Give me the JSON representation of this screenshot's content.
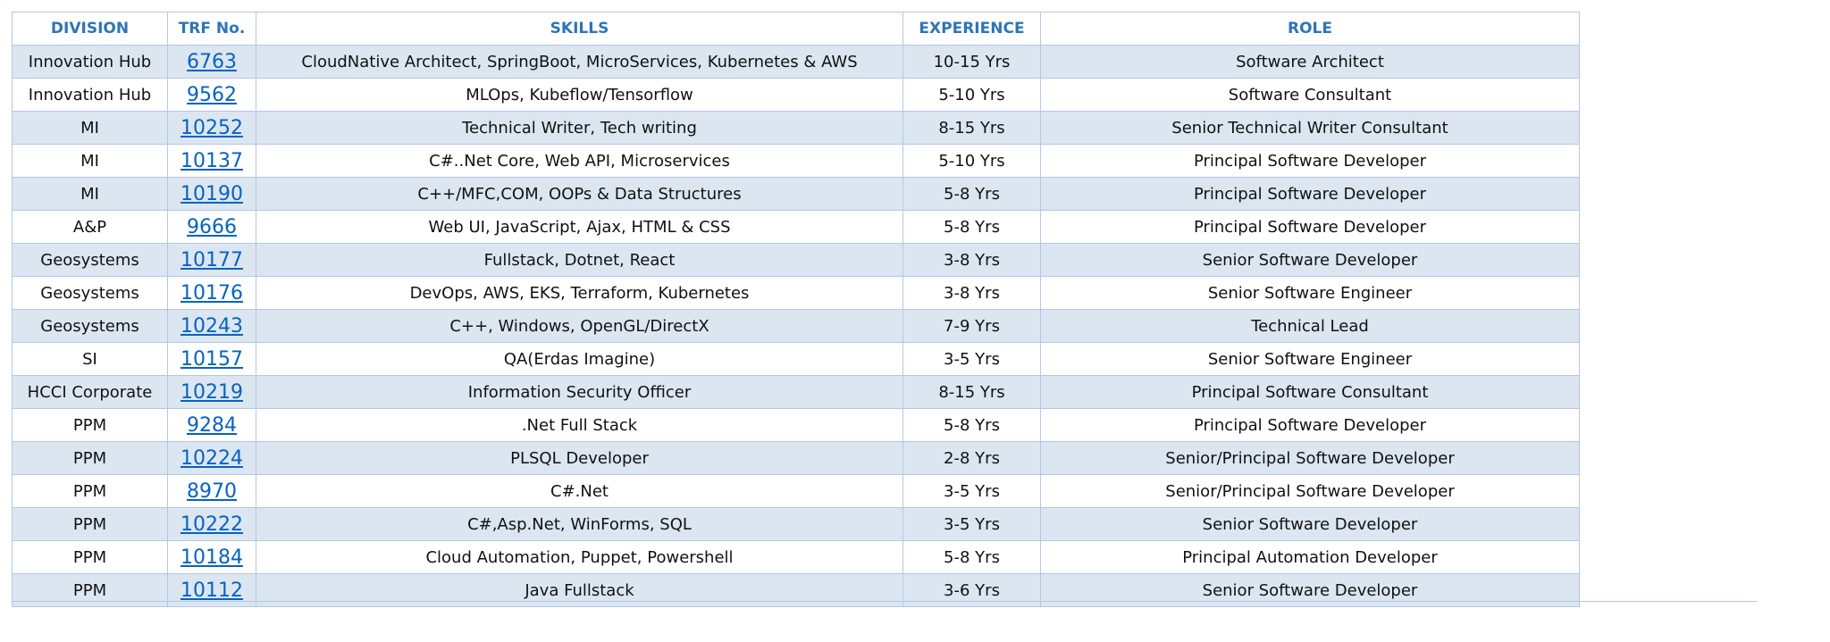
{
  "table": {
    "header": [
      "DIVISION",
      "TRF No.",
      "SKILLS",
      "EXPERIENCE",
      "ROLE"
    ],
    "rows": [
      [
        "Innovation Hub",
        "6763",
        "CloudNative Architect, SpringBoot, MicroServices, Kubernetes & AWS",
        "10-15 Yrs",
        "Software Architect"
      ],
      [
        "Innovation Hub",
        "9562",
        "MLOps, Kubeflow/Tensorflow",
        "5-10 Yrs",
        "Software Consultant"
      ],
      [
        "MI",
        "10252",
        "Technical Writer, Tech writing",
        "8-15 Yrs",
        "Senior Technical Writer Consultant"
      ],
      [
        "MI",
        "10137",
        "C#..Net Core, Web API, Microservices",
        "5-10 Yrs",
        "Principal Software Developer"
      ],
      [
        "MI",
        "10190",
        "C++/MFC,COM, OOPs & Data Structures",
        "5-8 Yrs",
        "Principal Software Developer"
      ],
      [
        "A&P",
        "9666",
        "Web UI, JavaScript, Ajax, HTML & CSS",
        "5-8 Yrs",
        "Principal Software Developer"
      ],
      [
        "Geosystems",
        "10177",
        "Fullstack, Dotnet, React",
        "3-8 Yrs",
        "Senior Software Developer"
      ],
      [
        "Geosystems",
        "10176",
        "DevOps, AWS, EKS, Terraform, Kubernetes",
        "3-8 Yrs",
        "Senior Software Engineer"
      ],
      [
        "Geosystems",
        "10243",
        "C++, Windows, OpenGL/DirectX",
        "7-9 Yrs",
        "Technical Lead"
      ],
      [
        "SI",
        "10157",
        "QA(Erdas Imagine)",
        "3-5 Yrs",
        "Senior Software Engineer"
      ],
      [
        "HCCI Corporate",
        "10219",
        "Information Security Officer",
        "8-15 Yrs",
        "Principal Software Consultant"
      ],
      [
        "PPM",
        "9284",
        ".Net Full Stack",
        "5-8 Yrs",
        "Principal Software Developer"
      ],
      [
        "PPM",
        "10224",
        "PLSQL Developer",
        "2-8 Yrs",
        "Senior/Principal Software Developer"
      ],
      [
        "PPM",
        "8970",
        "C#.Net",
        "3-5 Yrs",
        "Senior/Principal Software Developer"
      ],
      [
        "PPM",
        "10222",
        "C#,Asp.Net, WinForms, SQL",
        "3-5 Yrs",
        "Senior Software Developer"
      ],
      [
        "PPM",
        "10184",
        "Cloud Automation, Puppet, Powershell",
        "5-8 Yrs",
        "Principal Automation Developer"
      ],
      [
        "PPM",
        "10112",
        "Java Fullstack",
        "3-6 Yrs",
        "Senior Software Developer"
      ]
    ]
  }
}
